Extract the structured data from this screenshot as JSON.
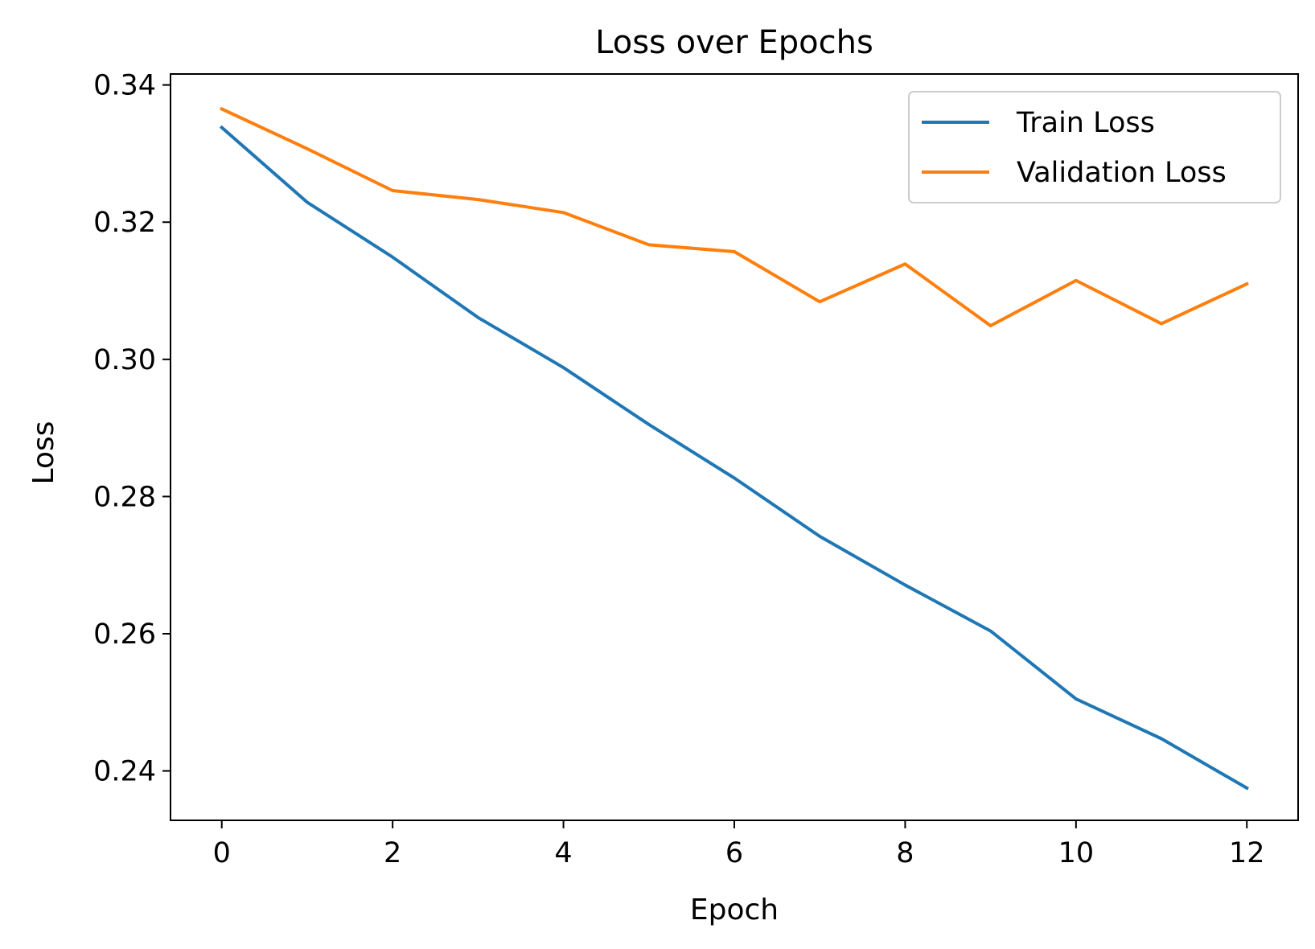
{
  "chart_data": {
    "type": "line",
    "title": "Loss over Epochs",
    "xlabel": "Epoch",
    "ylabel": "Loss",
    "x": [
      0,
      1,
      2,
      3,
      4,
      5,
      6,
      7,
      8,
      9,
      10,
      11,
      12
    ],
    "xlim": [
      -0.6,
      12.6
    ],
    "ylim": [
      0.2328,
      0.3416
    ],
    "xticks": [
      0,
      2,
      4,
      6,
      8,
      10,
      12
    ],
    "yticks": [
      0.24,
      0.26,
      0.28,
      0.3,
      0.32,
      0.34
    ],
    "xtick_labels": [
      "0",
      "2",
      "4",
      "6",
      "8",
      "10",
      "12"
    ],
    "ytick_labels": [
      "0.24",
      "0.26",
      "0.28",
      "0.30",
      "0.32",
      "0.34"
    ],
    "grid": false,
    "legend_position": "top-right",
    "series": [
      {
        "name": "Train Loss",
        "color": "#1f77b4",
        "values": [
          0.3338,
          0.3229,
          0.3149,
          0.3061,
          0.2988,
          0.2905,
          0.2827,
          0.2742,
          0.2671,
          0.2604,
          0.2505,
          0.2447,
          0.2375
        ]
      },
      {
        "name": "Validation Loss",
        "color": "#ff7f0e",
        "values": [
          0.3365,
          0.3307,
          0.3246,
          0.3233,
          0.3214,
          0.3167,
          0.3157,
          0.3084,
          0.3139,
          0.3049,
          0.3115,
          0.3052,
          0.311
        ]
      }
    ]
  }
}
